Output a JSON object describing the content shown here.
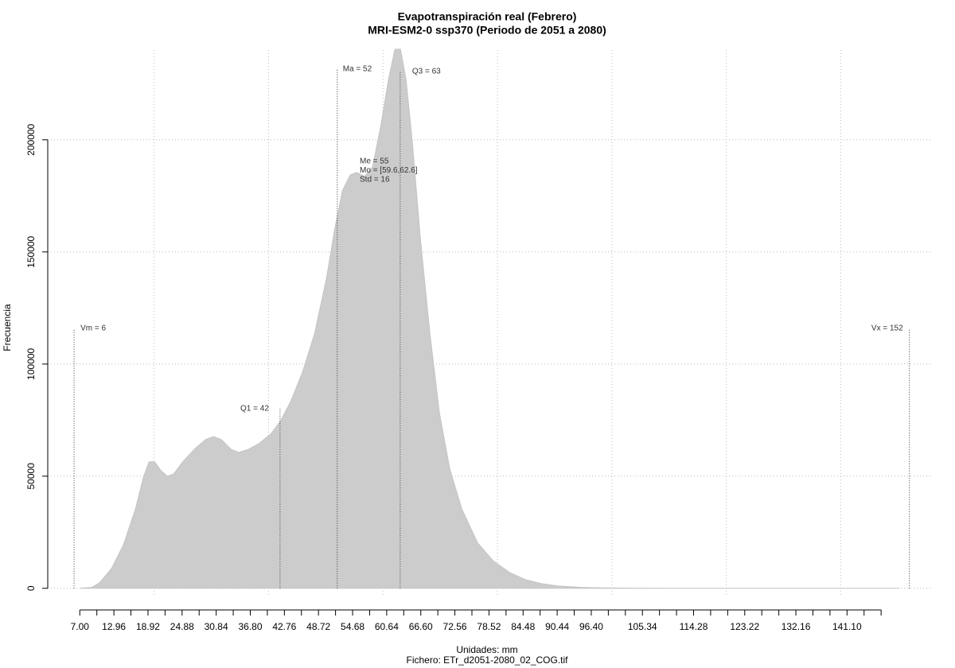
{
  "chart_data": {
    "type": "area",
    "title": "Evapotranspiración real (Febrero)",
    "subtitle": "MRI-ESM2-0 ssp370 (Periodo de 2051 a 2080)",
    "xlabel": "Unidades: mm",
    "caption": "Fichero: ETr_d2051-2080_02_COG.tif",
    "ylabel": "Frecuencia",
    "color": "#cccccc",
    "x": [
      7.0,
      9.09,
      10.48,
      12.56,
      14.65,
      16.74,
      18.13,
      19.1,
      20.07,
      21.19,
      22.3,
      23.41,
      25.08,
      27.17,
      28.98,
      30.37,
      31.76,
      33.43,
      34.82,
      36.49,
      38.29,
      40.38,
      42.05,
      43.86,
      45.94,
      48.03,
      50.12,
      51.51,
      52.9,
      54.29,
      55.4,
      56.79,
      58.18,
      59.57,
      60.96,
      62.08,
      63.05,
      64.02,
      65.14,
      66.53,
      68.2,
      69.87,
      71.67,
      73.76,
      76.54,
      79.32,
      82.1,
      84.88,
      87.66,
      90.45,
      94.62,
      98.79,
      104.36,
      111.31,
      132.17,
      150.25
    ],
    "values": [
      0,
      400,
      2500,
      8900,
      19500,
      35500,
      49600,
      56400,
      56400,
      52500,
      50000,
      51000,
      56700,
      62400,
      66300,
      67700,
      66300,
      62000,
      60600,
      62000,
      64500,
      68800,
      74500,
      83300,
      96500,
      113500,
      138300,
      159600,
      177300,
      184400,
      185400,
      183700,
      188000,
      205700,
      227000,
      240400,
      240400,
      227000,
      198600,
      156000,
      113500,
      78000,
      53200,
      35500,
      20200,
      12100,
      7100,
      3900,
      2100,
      1100,
      400,
      200,
      50,
      0,
      0,
      0
    ],
    "xlim": [
      1.4,
      155.8
    ],
    "ylim": [
      -10000,
      240000
    ],
    "xticks": [
      {
        "value": 7.0,
        "label": "7.00"
      },
      {
        "value": 12.96,
        "label": "12.96"
      },
      {
        "value": 18.92,
        "label": "18.92"
      },
      {
        "value": 24.88,
        "label": "24.88"
      },
      {
        "value": 30.84,
        "label": "30.84"
      },
      {
        "value": 36.8,
        "label": "36.80"
      },
      {
        "value": 42.76,
        "label": "42.76"
      },
      {
        "value": 48.72,
        "label": "48.72"
      },
      {
        "value": 54.68,
        "label": "54.68"
      },
      {
        "value": 60.64,
        "label": "60.64"
      },
      {
        "value": 66.6,
        "label": "66.60"
      },
      {
        "value": 72.56,
        "label": "72.56"
      },
      {
        "value": 78.52,
        "label": "78.52"
      },
      {
        "value": 84.48,
        "label": "84.48"
      },
      {
        "value": 90.44,
        "label": "90.44"
      },
      {
        "value": 96.4,
        "label": "96.40"
      },
      {
        "value": 105.34,
        "label": "105.34"
      },
      {
        "value": 114.28,
        "label": "114.28"
      },
      {
        "value": 123.22,
        "label": "123.22"
      },
      {
        "value": 132.16,
        "label": "132.16"
      },
      {
        "value": 141.1,
        "label": "141.10"
      }
    ],
    "xticks_minor": [
      9.98,
      15.94,
      21.9,
      27.86,
      33.82,
      39.78,
      45.74,
      51.7,
      57.66,
      63.62,
      69.58,
      75.54,
      81.5,
      87.46,
      93.42,
      99.38,
      102.36,
      108.32,
      111.3,
      117.26,
      120.24,
      126.2,
      129.18,
      135.14,
      138.12,
      144.08,
      147.06
    ],
    "xgrid": [
      20,
      40,
      60,
      80,
      100,
      120,
      140
    ],
    "yticks": [
      0,
      50000,
      100000,
      150000,
      200000
    ],
    "grid": true,
    "markers": [
      {
        "label": "Vm = 6",
        "value": 6
      },
      {
        "label": "Q1 = 42",
        "value": 42
      },
      {
        "label": "Ma = 52",
        "value": 52
      },
      {
        "label": "Q3 = 63",
        "value": 63
      },
      {
        "label": "Vx = 152",
        "value": 152
      }
    ],
    "annotations": [
      "Me = 55",
      "Mo = [59.6,62.6]",
      "Std = 16"
    ]
  }
}
